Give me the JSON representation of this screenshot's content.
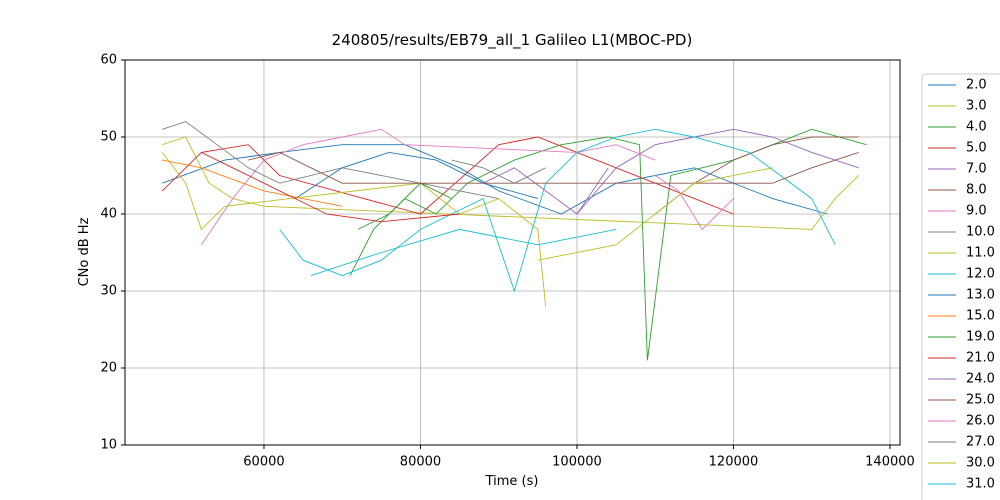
{
  "chart_data": {
    "type": "line",
    "title": "240805/results/EB79_all_1 Galileo L1(MBOC-PD)",
    "x_label": "Time (s)",
    "y_label": "CNo dB Hz",
    "xlim": [
      42240,
      141280
    ],
    "ylim": [
      10,
      60
    ],
    "xticks": [
      60000,
      80000,
      100000,
      120000,
      140000
    ],
    "yticks": [
      10,
      20,
      30,
      40,
      50,
      60
    ],
    "grid": true,
    "legend": "right",
    "series": [
      {
        "name": "2.0",
        "color": "#1f77b4",
        "x": [
          47000,
          55000,
          62000,
          70000,
          78000,
          85000,
          90000,
          98000,
          105000,
          115000,
          125000,
          132000
        ],
        "values": [
          44,
          47,
          48,
          49,
          49,
          46,
          43,
          40,
          44,
          46,
          42,
          40
        ]
      },
      {
        "name": "3.0",
        "color": "#bcbd22",
        "x": [
          47000,
          50000,
          53000,
          56000,
          60000,
          130000,
          133000,
          136000
        ],
        "values": [
          49,
          50,
          44,
          42,
          41,
          38,
          42,
          45
        ]
      },
      {
        "name": "4.0",
        "color": "#2ca02c",
        "x": [
          71000,
          74000,
          78000,
          82000,
          86000,
          92000,
          98000,
          104000,
          108000,
          109000,
          112000,
          120000,
          130000,
          137000
        ],
        "values": [
          32,
          38,
          42,
          40,
          44,
          47,
          49,
          50,
          49,
          21,
          45,
          47,
          51,
          49
        ]
      },
      {
        "name": "5.0",
        "color": "#d62728",
        "x": [
          47000,
          52000,
          58000,
          62000,
          80000,
          90000,
          95000,
          100000,
          115000,
          120000
        ],
        "values": [
          43,
          48,
          49,
          45,
          40,
          49,
          50,
          48,
          42,
          40
        ]
      },
      {
        "name": "7.0",
        "color": "#9467bd",
        "x": [
          100000,
          105000,
          110000,
          115000,
          120000,
          125000,
          130000,
          136000
        ],
        "values": [
          40,
          46,
          49,
          50,
          51,
          50,
          48,
          46
        ]
      },
      {
        "name": "8.0",
        "color": "#8c564b",
        "x": [
          110000,
          115000,
          120000,
          125000,
          130000,
          136000
        ],
        "values": [
          40,
          44,
          47,
          49,
          50,
          50
        ]
      },
      {
        "name": "9.0",
        "color": "#e377c2",
        "x": [
          52000,
          56000,
          60000,
          65000,
          70000,
          75000,
          78000,
          100000,
          105000,
          110000
        ],
        "values": [
          36,
          42,
          47,
          49,
          50,
          51,
          49,
          48,
          49,
          47
        ]
      },
      {
        "name": "10.0",
        "color": "#7f7f7f",
        "x": [
          47000,
          50000,
          54000,
          58000,
          62000,
          70000,
          80000,
          85000,
          90000
        ],
        "values": [
          51,
          52,
          49,
          46,
          44,
          46,
          44,
          43,
          42
        ]
      },
      {
        "name": "11.0",
        "color": "#bcbd22",
        "x": [
          47000,
          50000,
          52000,
          55000,
          80000,
          85000,
          90000,
          95000,
          96000
        ],
        "values": [
          48,
          44,
          38,
          41,
          44,
          40,
          42,
          38,
          28
        ]
      },
      {
        "name": "12.0",
        "color": "#17becf",
        "x": [
          62000,
          65000,
          70000,
          75000,
          80000,
          88000,
          92000,
          96000,
          100000,
          105000,
          110000,
          115000,
          122000,
          130000,
          133000
        ],
        "values": [
          38,
          34,
          32,
          34,
          38,
          42,
          30,
          44,
          48,
          50,
          51,
          50,
          48,
          42,
          36
        ]
      },
      {
        "name": "13.0",
        "color": "#1f77b4",
        "x": [
          64000,
          70000,
          76000,
          82000,
          88000,
          95000
        ],
        "values": [
          42,
          46,
          48,
          47,
          44,
          42
        ]
      },
      {
        "name": "15.0",
        "color": "#ff7f0e",
        "x": [
          47000,
          52000,
          60000,
          70000
        ],
        "values": [
          47,
          46,
          43,
          41
        ]
      },
      {
        "name": "19.0",
        "color": "#2ca02c",
        "x": [
          72000,
          76000,
          80000,
          84000
        ],
        "values": [
          38,
          40,
          44,
          42
        ]
      },
      {
        "name": "21.0",
        "color": "#d62728",
        "x": [
          52000,
          56000,
          60000,
          64000,
          68000,
          75000,
          85000
        ],
        "values": [
          48,
          46,
          44,
          42,
          40,
          39,
          40
        ]
      },
      {
        "name": "24.0",
        "color": "#9467bd",
        "x": [
          88000,
          92000,
          96000,
          100000,
          104000
        ],
        "values": [
          44,
          46,
          43,
          40,
          46
        ]
      },
      {
        "name": "25.0",
        "color": "#8c564b",
        "x": [
          58000,
          62000,
          66000,
          70000,
          125000,
          130000,
          136000
        ],
        "values": [
          47,
          48,
          46,
          44,
          44,
          46,
          48
        ]
      },
      {
        "name": "26.0",
        "color": "#e377c2",
        "x": [
          110000,
          113000,
          116000,
          120000
        ],
        "values": [
          45,
          43,
          38,
          42
        ]
      },
      {
        "name": "27.0",
        "color": "#7f7f7f",
        "x": [
          84000,
          88000,
          92000,
          96000
        ],
        "values": [
          47,
          46,
          44,
          46
        ]
      },
      {
        "name": "30.0",
        "color": "#bcbd22",
        "x": [
          95000,
          105000,
          115000,
          125000
        ],
        "values": [
          34,
          36,
          44,
          46
        ]
      },
      {
        "name": "31.0",
        "color": "#17becf",
        "x": [
          66000,
          75000,
          85000,
          95000,
          105000
        ],
        "values": [
          32,
          35,
          38,
          36,
          38
        ]
      }
    ]
  }
}
